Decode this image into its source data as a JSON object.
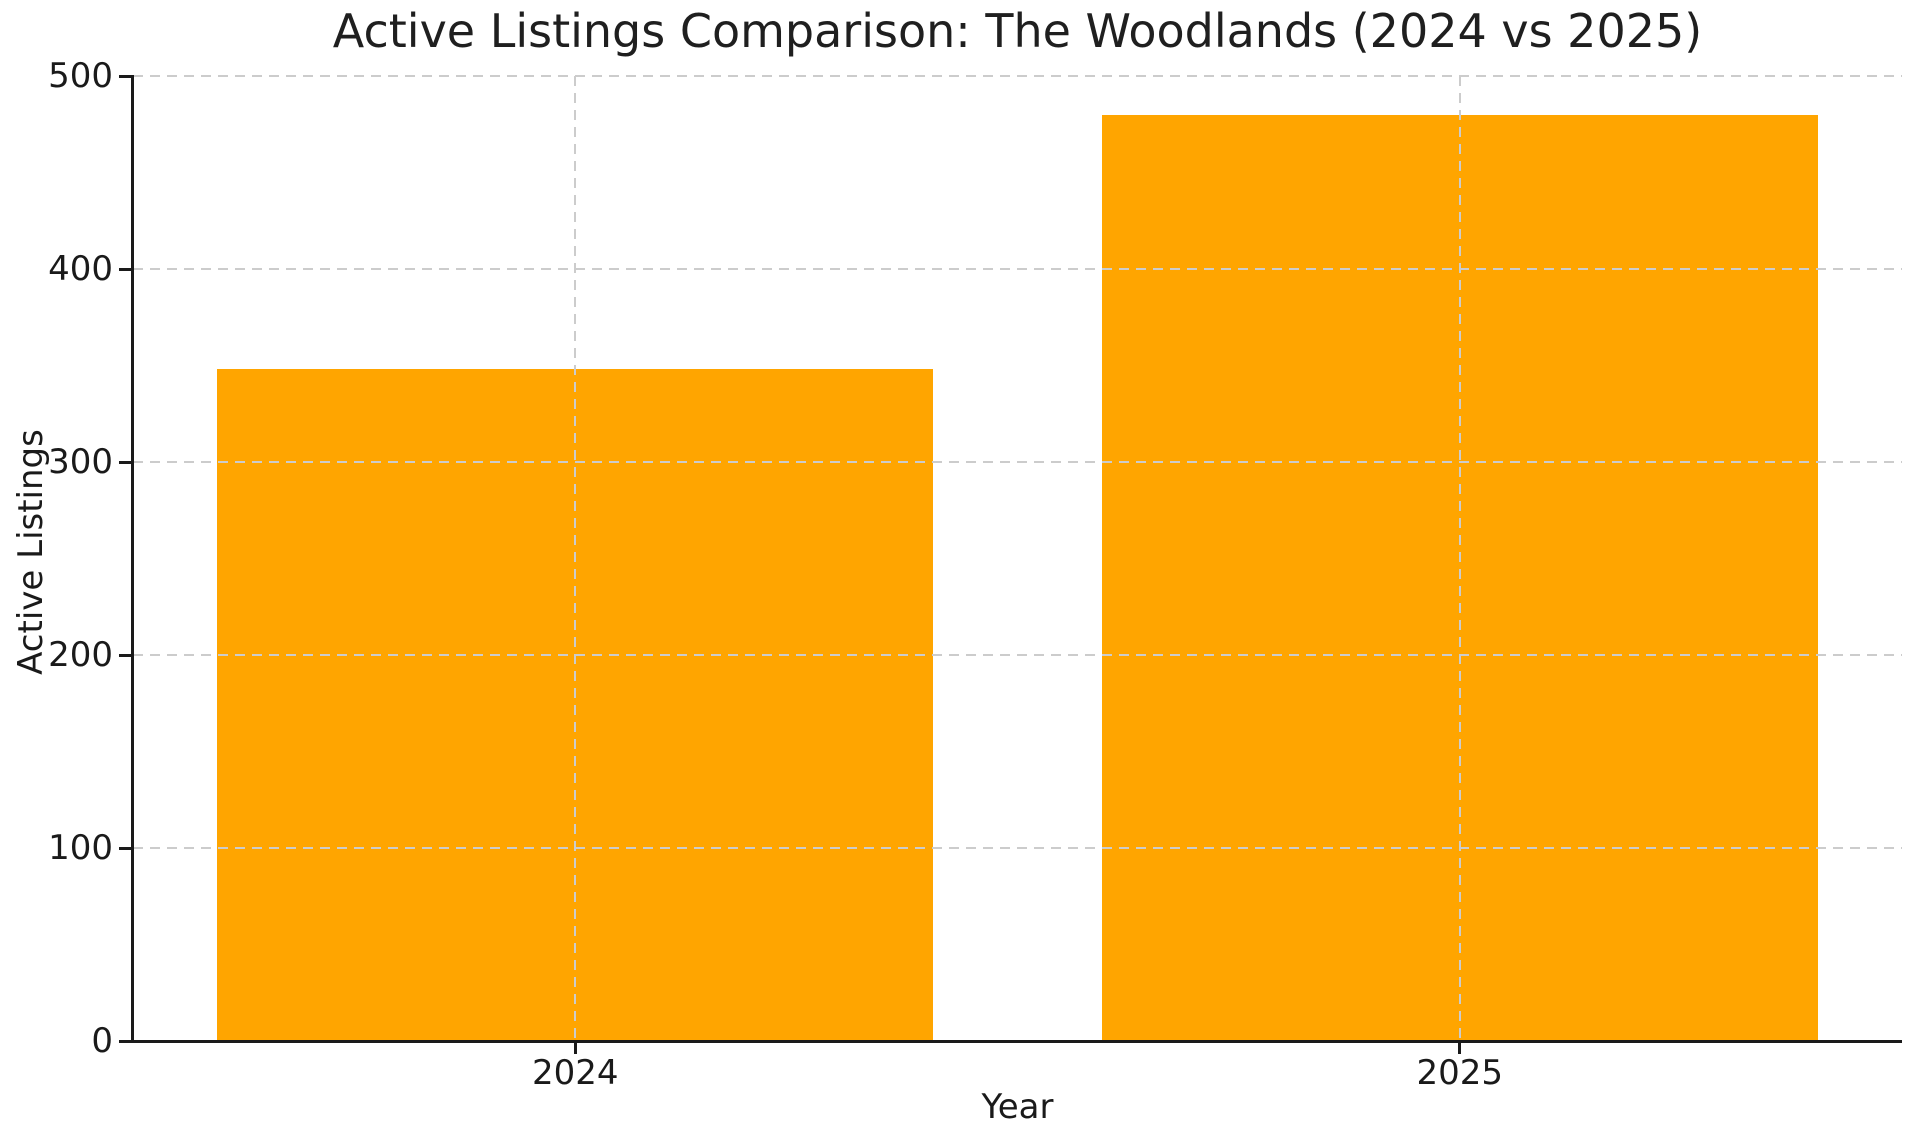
{
  "chart_data": {
    "type": "bar",
    "title": "Active Listings Comparison: The Woodlands (2024 vs 2025)",
    "xlabel": "Year",
    "ylabel": "Active Listings",
    "categories": [
      "2024",
      "2025"
    ],
    "values": [
      348,
      480
    ],
    "ylim": [
      0,
      500
    ],
    "yticks": [
      0,
      100,
      200,
      300,
      400,
      500
    ],
    "bar_color": "#FFA500",
    "grid": "dashed",
    "grid_color": "#cccccc",
    "axis_color": "#1a1a1a",
    "text_color": "#1a1a1a",
    "background_color": "#ffffff",
    "legend_position": "none"
  }
}
